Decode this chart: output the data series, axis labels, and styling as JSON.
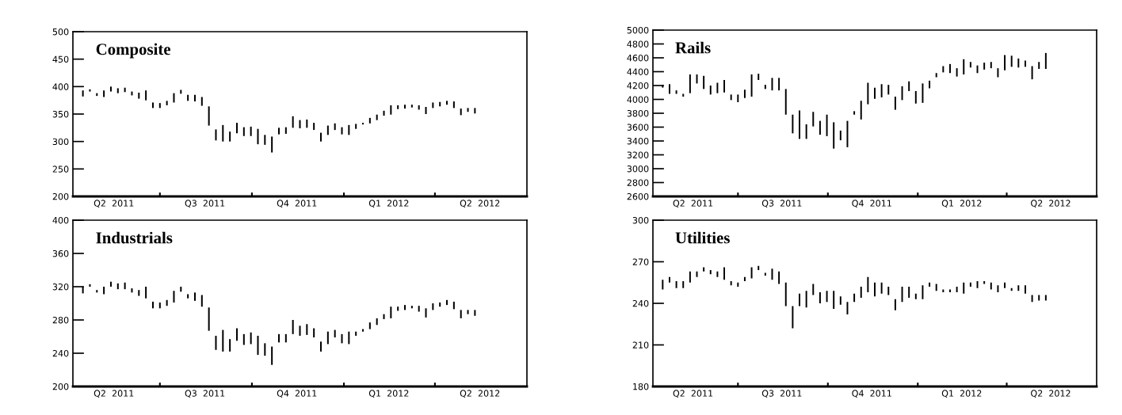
{
  "chart_data": [
    {
      "type": "bar",
      "title": "Composite",
      "x": [
        "2011-04-15",
        "2011-04-22",
        "2011-04-29",
        "2011-05-06",
        "2011-05-13",
        "2011-05-20",
        "2011-05-27",
        "2011-06-03",
        "2011-06-10",
        "2011-06-17",
        "2011-06-24",
        "2011-07-01",
        "2011-07-08",
        "2011-07-15",
        "2011-07-22",
        "2011-07-29",
        "2011-08-05",
        "2011-08-12",
        "2011-08-19",
        "2011-08-26",
        "2011-09-02",
        "2011-09-09",
        "2011-09-16",
        "2011-09-23",
        "2011-09-30",
        "2011-10-07",
        "2011-10-14",
        "2011-10-21",
        "2011-10-28",
        "2011-11-04",
        "2011-11-11",
        "2011-11-18",
        "2011-11-25",
        "2011-12-02",
        "2011-12-09",
        "2011-12-16",
        "2011-12-23",
        "2011-12-30",
        "2012-01-06",
        "2012-01-13",
        "2012-01-20",
        "2012-01-27",
        "2012-02-03",
        "2012-02-10",
        "2012-02-17",
        "2012-02-24",
        "2012-03-02",
        "2012-03-09",
        "2012-03-16",
        "2012-03-23",
        "2012-03-30",
        "2012-04-06",
        "2012-04-13",
        "2012-04-20",
        "2012-04-27",
        "2012-05-04",
        "2012-05-11"
      ],
      "base": [
        382,
        391,
        383,
        381,
        391,
        388,
        390,
        384,
        378,
        375,
        361,
        361,
        366,
        371,
        387,
        374,
        373,
        365,
        329,
        302,
        300,
        300,
        315,
        310,
        310,
        295,
        294,
        280,
        313,
        314,
        325,
        324,
        325,
        321,
        300,
        312,
        321,
        313,
        312,
        323,
        331,
        333,
        339,
        347,
        349,
        359,
        360,
        362,
        358,
        350,
        361,
        364,
        367,
        361,
        348,
        354,
        351
      ],
      "values": [
        11,
        4,
        5,
        12,
        9,
        9,
        8,
        7,
        11,
        18,
        10,
        9,
        8,
        17,
        7,
        11,
        12,
        16,
        35,
        20,
        30,
        18,
        19,
        16,
        17,
        28,
        18,
        29,
        12,
        12,
        21,
        15,
        15,
        13,
        16,
        17,
        12,
        13,
        18,
        9,
        3,
        10,
        10,
        9,
        17,
        7,
        7,
        5,
        8,
        13,
        10,
        8,
        7,
        12,
        12,
        7,
        10
      ],
      "color": "#000000",
      "xlim": [
        "2011-04-05",
        "2012-07-02"
      ],
      "xticks": [
        {
          "value": "2011-05-16",
          "label": "Q2  2011"
        },
        {
          "value": "2011-07-01",
          "label": null
        },
        {
          "value": "2011-08-15",
          "label": "Q3  2011"
        },
        {
          "value": "2011-10-01",
          "label": null
        },
        {
          "value": "2011-11-15",
          "label": "Q4  2011"
        },
        {
          "value": "2012-01-01",
          "label": null
        },
        {
          "value": "2012-02-15",
          "label": "Q1  2012"
        },
        {
          "value": "2012-04-01",
          "label": null
        },
        {
          "value": "2012-05-16",
          "label": "Q2  2012"
        }
      ],
      "ylim": [
        200,
        500
      ],
      "yticks": [
        200,
        250,
        300,
        350,
        400,
        450,
        500
      ]
    },
    {
      "type": "bar",
      "title": "Rails",
      "x": [
        "2011-04-15",
        "2011-04-22",
        "2011-04-29",
        "2011-05-06",
        "2011-05-13",
        "2011-05-20",
        "2011-05-27",
        "2011-06-03",
        "2011-06-10",
        "2011-06-17",
        "2011-06-24",
        "2011-07-01",
        "2011-07-08",
        "2011-07-15",
        "2011-07-22",
        "2011-07-29",
        "2011-08-05",
        "2011-08-12",
        "2011-08-19",
        "2011-08-26",
        "2011-09-02",
        "2011-09-09",
        "2011-09-16",
        "2011-09-23",
        "2011-09-30",
        "2011-10-07",
        "2011-10-14",
        "2011-10-21",
        "2011-10-28",
        "2011-11-04",
        "2011-11-11",
        "2011-11-18",
        "2011-11-25",
        "2011-12-02",
        "2011-12-09",
        "2011-12-16",
        "2011-12-23",
        "2011-12-30",
        "2012-01-06",
        "2012-01-13",
        "2012-01-20",
        "2012-01-27",
        "2012-02-03",
        "2012-02-10",
        "2012-02-17",
        "2012-02-24",
        "2012-03-02",
        "2012-03-09",
        "2012-03-16",
        "2012-03-23",
        "2012-03-30",
        "2012-04-06",
        "2012-04-13",
        "2012-04-20",
        "2012-04-27",
        "2012-05-04",
        "2012-05-11"
      ],
      "base": [
        4170,
        4080,
        4080,
        4040,
        4090,
        4230,
        4150,
        4070,
        4090,
        4100,
        3990,
        3960,
        4020,
        4040,
        4280,
        4150,
        4130,
        4130,
        3780,
        3510,
        3430,
        3430,
        3610,
        3490,
        3470,
        3290,
        3410,
        3310,
        3780,
        3710,
        3930,
        4010,
        4030,
        4070,
        3850,
        3990,
        4120,
        3940,
        3950,
        4160,
        4320,
        4390,
        4380,
        4330,
        4360,
        4460,
        4380,
        4430,
        4450,
        4320,
        4420,
        4470,
        4460,
        4470,
        4290,
        4440,
        4440
      ],
      "values": [
        40,
        140,
        50,
        40,
        270,
        130,
        190,
        130,
        150,
        180,
        80,
        110,
        120,
        320,
        90,
        60,
        180,
        180,
        370,
        270,
        410,
        210,
        210,
        200,
        310,
        380,
        140,
        380,
        50,
        270,
        310,
        160,
        190,
        140,
        190,
        200,
        140,
        180,
        280,
        110,
        60,
        90,
        130,
        120,
        220,
        80,
        110,
        100,
        90,
        130,
        220,
        160,
        130,
        90,
        190,
        100,
        230
      ],
      "color": "#000000",
      "xlim": [
        "2011-04-05",
        "2012-07-02"
      ],
      "xticks": [
        {
          "value": "2011-05-16",
          "label": "Q2  2011"
        },
        {
          "value": "2011-07-01",
          "label": null
        },
        {
          "value": "2011-08-15",
          "label": "Q3  2011"
        },
        {
          "value": "2011-10-01",
          "label": null
        },
        {
          "value": "2011-11-15",
          "label": "Q4  2011"
        },
        {
          "value": "2012-01-01",
          "label": null
        },
        {
          "value": "2012-02-15",
          "label": "Q1  2012"
        },
        {
          "value": "2012-04-01",
          "label": null
        },
        {
          "value": "2012-05-16",
          "label": "Q2  2012"
        }
      ],
      "ylim": [
        2600,
        5000
      ],
      "yticks": [
        2600,
        2800,
        3000,
        3200,
        3400,
        3600,
        3800,
        4000,
        4200,
        4400,
        4600,
        4800,
        5000
      ]
    },
    {
      "type": "bar",
      "title": "Industrials",
      "x": [
        "2011-04-15",
        "2011-04-22",
        "2011-04-29",
        "2011-05-06",
        "2011-05-13",
        "2011-05-20",
        "2011-05-27",
        "2011-06-03",
        "2011-06-10",
        "2011-06-17",
        "2011-06-24",
        "2011-07-01",
        "2011-07-08",
        "2011-07-15",
        "2011-07-22",
        "2011-07-29",
        "2011-08-05",
        "2011-08-12",
        "2011-08-19",
        "2011-08-26",
        "2011-09-02",
        "2011-09-09",
        "2011-09-16",
        "2011-09-23",
        "2011-09-30",
        "2011-10-07",
        "2011-10-14",
        "2011-10-21",
        "2011-10-28",
        "2011-11-04",
        "2011-11-11",
        "2011-11-18",
        "2011-11-25",
        "2011-12-02",
        "2011-12-09",
        "2011-12-16",
        "2011-12-23",
        "2011-12-30",
        "2012-01-06",
        "2012-01-13",
        "2012-01-20",
        "2012-01-27",
        "2012-02-03",
        "2012-02-10",
        "2012-02-17",
        "2012-02-24",
        "2012-03-02",
        "2012-03-09",
        "2012-03-16",
        "2012-03-23",
        "2012-03-30",
        "2012-04-06",
        "2012-04-13",
        "2012-04-20",
        "2012-04-27",
        "2012-05-04",
        "2012-05-11"
      ],
      "base": [
        312,
        320,
        313,
        311,
        320,
        317,
        317,
        313,
        309,
        306,
        294,
        294,
        297,
        301,
        314,
        306,
        303,
        296,
        267,
        244,
        242,
        242,
        255,
        250,
        251,
        238,
        237,
        226,
        253,
        253,
        263,
        261,
        262,
        259,
        242,
        251,
        259,
        252,
        251,
        261,
        266,
        269,
        274,
        281,
        282,
        291,
        292,
        294,
        290,
        283,
        292,
        296,
        298,
        293,
        282,
        287,
        285
      ],
      "values": [
        8,
        3,
        3,
        9,
        6,
        7,
        8,
        5,
        7,
        14,
        8,
        7,
        7,
        14,
        6,
        5,
        10,
        14,
        28,
        17,
        26,
        15,
        15,
        13,
        14,
        23,
        15,
        22,
        10,
        10,
        17,
        12,
        13,
        11,
        12,
        15,
        9,
        11,
        15,
        5,
        3,
        8,
        8,
        6,
        14,
        5,
        6,
        3,
        7,
        11,
        8,
        5,
        6,
        9,
        10,
        5,
        7
      ],
      "color": "#000000",
      "xlim": [
        "2011-04-05",
        "2012-07-02"
      ],
      "xticks": [
        {
          "value": "2011-05-16",
          "label": "Q2  2011"
        },
        {
          "value": "2011-07-01",
          "label": null
        },
        {
          "value": "2011-08-15",
          "label": "Q3  2011"
        },
        {
          "value": "2011-10-01",
          "label": null
        },
        {
          "value": "2011-11-15",
          "label": "Q4  2011"
        },
        {
          "value": "2012-01-01",
          "label": null
        },
        {
          "value": "2012-02-15",
          "label": "Q1  2012"
        },
        {
          "value": "2012-04-01",
          "label": null
        },
        {
          "value": "2012-05-16",
          "label": "Q2  2012"
        }
      ],
      "ylim": [
        200,
        400
      ],
      "yticks": [
        200,
        240,
        280,
        320,
        360,
        400
      ]
    },
    {
      "type": "bar",
      "title": "Utilities",
      "x": [
        "2011-04-15",
        "2011-04-22",
        "2011-04-29",
        "2011-05-06",
        "2011-05-13",
        "2011-05-20",
        "2011-05-27",
        "2011-06-03",
        "2011-06-10",
        "2011-06-17",
        "2011-06-24",
        "2011-07-01",
        "2011-07-08",
        "2011-07-15",
        "2011-07-22",
        "2011-07-29",
        "2011-08-05",
        "2011-08-12",
        "2011-08-19",
        "2011-08-26",
        "2011-09-02",
        "2011-09-09",
        "2011-09-16",
        "2011-09-23",
        "2011-09-30",
        "2011-10-07",
        "2011-10-14",
        "2011-10-21",
        "2011-10-28",
        "2011-11-04",
        "2011-11-11",
        "2011-11-18",
        "2011-11-25",
        "2011-12-02",
        "2011-12-09",
        "2011-12-16",
        "2011-12-23",
        "2011-12-30",
        "2012-01-06",
        "2012-01-13",
        "2012-01-20",
        "2012-01-27",
        "2012-02-03",
        "2012-02-10",
        "2012-02-17",
        "2012-02-24",
        "2012-03-02",
        "2012-03-09",
        "2012-03-16",
        "2012-03-23",
        "2012-03-30",
        "2012-04-06",
        "2012-04-13",
        "2012-04-20",
        "2012-04-27",
        "2012-05-04",
        "2012-05-11"
      ],
      "base": [
        250,
        255,
        251,
        251,
        255,
        259,
        263,
        261,
        259,
        257,
        253,
        252,
        256,
        258,
        264,
        260,
        257,
        254,
        238,
        222,
        238,
        237,
        246,
        240,
        241,
        236,
        239,
        232,
        241,
        244,
        248,
        245,
        247,
        246,
        235,
        241,
        244,
        243,
        243,
        252,
        249,
        248,
        248,
        248,
        247,
        252,
        251,
        254,
        250,
        248,
        251,
        249,
        249,
        247,
        241,
        242,
        242
      ],
      "values": [
        7,
        4,
        5,
        5,
        8,
        4,
        3,
        3,
        4,
        9,
        3,
        3,
        3,
        8,
        3,
        2,
        8,
        9,
        17,
        16,
        9,
        12,
        8,
        8,
        8,
        13,
        6,
        9,
        6,
        8,
        11,
        10,
        8,
        6,
        8,
        11,
        8,
        4,
        10,
        3,
        5,
        2,
        2,
        4,
        8,
        3,
        5,
        2,
        5,
        5,
        4,
        2,
        4,
        6,
        5,
        4,
        4
      ],
      "color": "#000000",
      "xlim": [
        "2011-04-05",
        "2012-07-02"
      ],
      "xticks": [
        {
          "value": "2011-05-16",
          "label": "Q2  2011"
        },
        {
          "value": "2011-07-01",
          "label": null
        },
        {
          "value": "2011-08-15",
          "label": "Q3  2011"
        },
        {
          "value": "2011-10-01",
          "label": null
        },
        {
          "value": "2011-11-15",
          "label": "Q4  2011"
        },
        {
          "value": "2012-01-01",
          "label": null
        },
        {
          "value": "2012-02-15",
          "label": "Q1  2012"
        },
        {
          "value": "2012-04-01",
          "label": null
        },
        {
          "value": "2012-05-16",
          "label": "Q2  2012"
        }
      ],
      "ylim": [
        180,
        300
      ],
      "yticks": [
        180,
        210,
        240,
        270,
        300
      ]
    }
  ]
}
